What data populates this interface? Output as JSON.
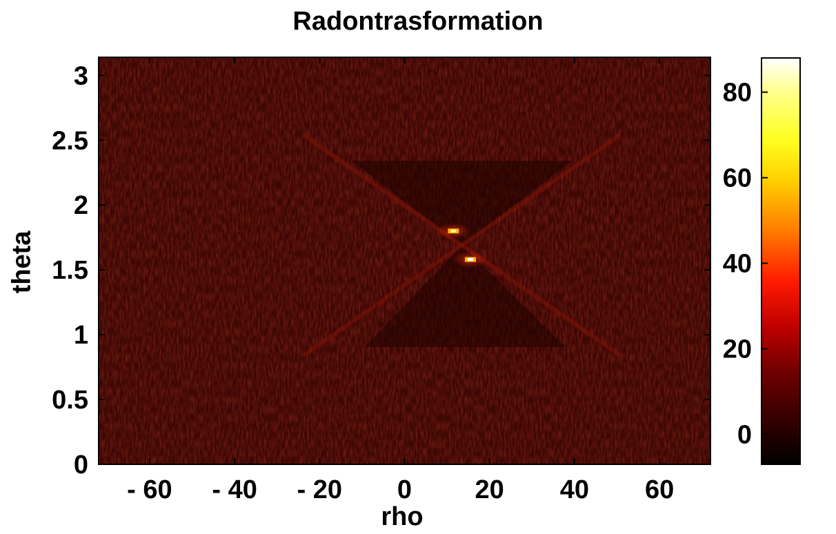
{
  "chart_data": {
    "type": "heatmap",
    "title": "Radontrasformation",
    "xlabel": "rho",
    "ylabel": "theta",
    "xlim": [
      -72,
      72
    ],
    "ylim": [
      0,
      3.14
    ],
    "clim": [
      -7,
      88
    ],
    "x_ticks": [
      {
        "value": -60,
        "label": "- 60"
      },
      {
        "value": -40,
        "label": "- 40"
      },
      {
        "value": -20,
        "label": "- 20"
      },
      {
        "value": 0,
        "label": "0"
      },
      {
        "value": 20,
        "label": "20"
      },
      {
        "value": 40,
        "label": "40"
      },
      {
        "value": 60,
        "label": "60"
      }
    ],
    "y_ticks": [
      {
        "value": 0,
        "label": "0"
      },
      {
        "value": 0.5,
        "label": "0.5"
      },
      {
        "value": 1,
        "label": "1"
      },
      {
        "value": 1.5,
        "label": "1.5"
      },
      {
        "value": 2,
        "label": "2"
      },
      {
        "value": 2.5,
        "label": "2.5"
      },
      {
        "value": 3,
        "label": "3"
      }
    ],
    "colorbar_ticks": [
      {
        "value": 0,
        "label": "0"
      },
      {
        "value": 20,
        "label": "20"
      },
      {
        "value": 40,
        "label": "40"
      },
      {
        "value": 60,
        "label": "60"
      },
      {
        "value": 80,
        "label": "80"
      }
    ],
    "colormap": "hot",
    "background_level": 5,
    "peaks": [
      {
        "rho": 11.5,
        "theta": 1.8,
        "value": 65
      },
      {
        "rho": 15.5,
        "theta": 1.58,
        "value": 88
      }
    ],
    "grid": false
  }
}
